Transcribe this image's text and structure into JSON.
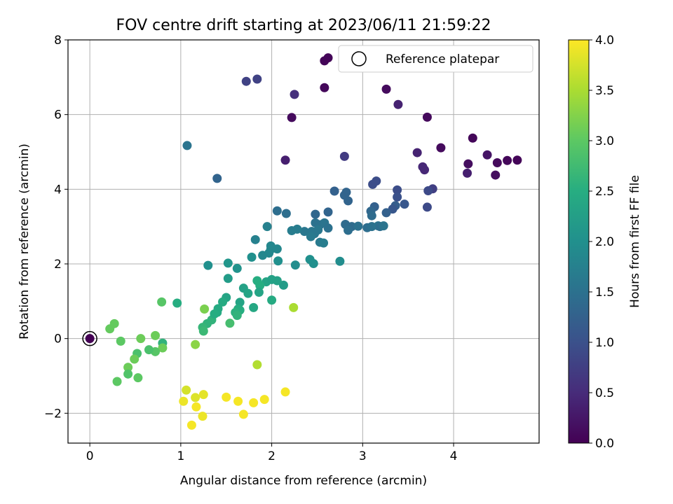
{
  "chart_data": {
    "type": "scatter",
    "title": "FOV centre drift starting at 2023/06/11 21:59:22",
    "xlabel": "Angular distance from reference (arcmin)",
    "ylabel": "Rotation from reference (arcmin)",
    "xlim": [
      -0.24,
      4.94
    ],
    "ylim": [
      -2.8,
      8.0
    ],
    "xticks": [
      0,
      1,
      2,
      3,
      4
    ],
    "yticks": [
      -2,
      0,
      2,
      4,
      6,
      8
    ],
    "xtick_labels": [
      "0",
      "1",
      "2",
      "3",
      "4"
    ],
    "ytick_labels": [
      "−2",
      "0",
      "2",
      "4",
      "6",
      "8"
    ],
    "grid": true,
    "legend": {
      "position": "top-right",
      "entries": [
        "Reference platepar"
      ]
    },
    "reference_point": {
      "x": 0,
      "y": 0
    },
    "colorbar": {
      "label": "Hours from first FF file",
      "range": [
        0.0,
        4.0
      ],
      "ticks": [
        "0.0",
        "0.5",
        "1.0",
        "1.5",
        "2.0",
        "2.5",
        "3.0",
        "3.5",
        "4.0"
      ],
      "colormap": [
        "#440154",
        "#472c7a",
        "#3b518b",
        "#2c718e",
        "#21908d",
        "#27ad81",
        "#5cc863",
        "#aadc32",
        "#fde725"
      ]
    },
    "series": [
      {
        "points": [
          [
            2.62,
            7.52,
            0.05
          ],
          [
            2.58,
            7.44,
            0.05
          ],
          [
            2.58,
            6.72,
            0.08
          ],
          [
            3.26,
            6.68,
            0.12
          ],
          [
            3.71,
            5.93,
            0.1
          ],
          [
            2.22,
            5.92,
            0.12
          ],
          [
            4.21,
            5.37,
            0.07
          ],
          [
            3.86,
            5.11,
            0.12
          ],
          [
            4.7,
            4.78,
            0.05
          ],
          [
            4.59,
            4.77,
            0.07
          ],
          [
            4.48,
            4.71,
            0.1
          ],
          [
            4.37,
            4.92,
            0.22
          ],
          [
            4.16,
            4.68,
            0.15
          ],
          [
            4.46,
            4.38,
            0.15
          ],
          [
            4.15,
            4.43,
            0.35
          ],
          [
            1.84,
            6.95,
            0.8
          ],
          [
            1.72,
            6.89,
            0.8
          ],
          [
            2.25,
            6.54,
            0.55
          ],
          [
            3.39,
            6.27,
            0.38
          ],
          [
            3.6,
            4.98,
            0.4
          ],
          [
            3.66,
            4.6,
            0.45
          ],
          [
            3.68,
            4.52,
            0.45
          ],
          [
            2.15,
            4.78,
            0.35
          ],
          [
            2.8,
            4.88,
            0.7
          ],
          [
            3.15,
            4.22,
            0.95
          ],
          [
            3.11,
            4.13,
            0.95
          ],
          [
            3.77,
            4.01,
            0.75
          ],
          [
            3.72,
            3.96,
            0.9
          ],
          [
            3.38,
            3.98,
            0.95
          ],
          [
            3.38,
            3.79,
            1.0
          ],
          [
            3.46,
            3.6,
            1.1
          ],
          [
            3.36,
            3.56,
            1.2
          ],
          [
            3.71,
            3.52,
            0.9
          ],
          [
            3.33,
            3.47,
            1.1
          ],
          [
            3.26,
            3.37,
            1.25
          ],
          [
            3.13,
            3.53,
            1.25
          ],
          [
            3.09,
            3.41,
            1.35
          ],
          [
            3.1,
            3.29,
            1.4
          ],
          [
            2.82,
            3.92,
            1.3
          ],
          [
            2.69,
            3.95,
            1.25
          ],
          [
            2.8,
            3.84,
            1.3
          ],
          [
            2.84,
            3.69,
            1.3
          ],
          [
            2.62,
            3.39,
            1.3
          ],
          [
            2.48,
            3.33,
            1.35
          ],
          [
            2.81,
            3.06,
            1.4
          ],
          [
            2.88,
            3.0,
            1.4
          ],
          [
            2.95,
            3.01,
            1.5
          ],
          [
            2.84,
            2.9,
            1.45
          ],
          [
            3.05,
            2.97,
            1.45
          ],
          [
            3.1,
            3.0,
            1.5
          ],
          [
            3.17,
            3.02,
            1.55
          ],
          [
            3.19,
            3.0,
            1.45
          ],
          [
            3.23,
            3.02,
            1.55
          ],
          [
            2.48,
            3.1,
            1.5
          ],
          [
            2.53,
            3.05,
            1.5
          ],
          [
            2.58,
            3.1,
            1.55
          ],
          [
            2.62,
            2.96,
            1.5
          ],
          [
            2.51,
            2.91,
            1.6
          ],
          [
            2.44,
            2.87,
            1.6
          ],
          [
            2.47,
            2.81,
            1.6
          ],
          [
            2.36,
            2.87,
            1.6
          ],
          [
            2.28,
            2.93,
            1.7
          ],
          [
            2.22,
            2.89,
            1.7
          ],
          [
            2.43,
            2.73,
            1.65
          ],
          [
            2.53,
            2.58,
            1.65
          ],
          [
            2.57,
            2.56,
            1.7
          ],
          [
            2.16,
            3.35,
            1.45
          ],
          [
            2.06,
            3.42,
            1.45
          ],
          [
            1.95,
            3.0,
            1.75
          ],
          [
            1.82,
            2.65,
            1.75
          ],
          [
            1.99,
            2.48,
            1.85
          ],
          [
            1.99,
            2.39,
            1.85
          ],
          [
            2.06,
            2.4,
            1.85
          ],
          [
            1.97,
            2.29,
            1.85
          ],
          [
            1.9,
            2.23,
            1.85
          ],
          [
            1.78,
            2.18,
            2.0
          ],
          [
            2.07,
            2.08,
            2.0
          ],
          [
            2.26,
            1.97,
            1.95
          ],
          [
            2.42,
            2.12,
            2.0
          ],
          [
            2.46,
            2.01,
            2.0
          ],
          [
            2.75,
            2.07,
            1.95
          ],
          [
            1.3,
            1.96,
            2.0
          ],
          [
            1.52,
            2.02,
            2.1
          ],
          [
            1.62,
            1.88,
            2.05
          ],
          [
            1.52,
            1.61,
            2.2
          ],
          [
            2.13,
            1.43,
            2.2
          ],
          [
            1.94,
            1.52,
            2.35
          ],
          [
            2.0,
            1.58,
            2.3
          ],
          [
            2.06,
            1.55,
            2.3
          ],
          [
            1.84,
            1.55,
            2.5
          ],
          [
            1.87,
            1.42,
            2.5
          ],
          [
            1.86,
            1.24,
            2.35
          ],
          [
            1.69,
            1.35,
            2.3
          ],
          [
            1.74,
            1.21,
            2.35
          ],
          [
            1.8,
            0.83,
            2.4
          ],
          [
            2.0,
            1.03,
            2.45
          ],
          [
            1.65,
            0.97,
            2.35
          ],
          [
            1.5,
            1.1,
            2.35
          ],
          [
            1.46,
            0.98,
            2.45
          ],
          [
            1.41,
            0.8,
            2.45
          ],
          [
            1.4,
            0.7,
            2.45
          ],
          [
            1.63,
            0.79,
            2.5
          ],
          [
            1.65,
            0.76,
            2.5
          ],
          [
            1.6,
            0.7,
            2.55
          ],
          [
            1.62,
            0.62,
            2.6
          ],
          [
            1.34,
            0.5,
            2.6
          ],
          [
            1.29,
            0.4,
            2.6
          ],
          [
            1.24,
            0.3,
            2.65
          ],
          [
            1.25,
            0.2,
            2.7
          ],
          [
            1.37,
            0.66,
            2.5
          ],
          [
            1.54,
            0.41,
            2.8
          ],
          [
            0.96,
            0.95,
            2.5
          ],
          [
            1.07,
            5.17,
            1.55
          ],
          [
            1.4,
            4.29,
            1.3
          ],
          [
            0.79,
            0.98,
            2.95
          ],
          [
            0.8,
            -0.12,
            2.6
          ],
          [
            0.8,
            -0.25,
            3.1
          ],
          [
            0.72,
            -0.35,
            2.95
          ],
          [
            0.65,
            -0.3,
            2.85
          ],
          [
            0.72,
            0.08,
            3.1
          ],
          [
            0.56,
            0.0,
            3.1
          ],
          [
            0.52,
            -0.4,
            2.85
          ],
          [
            0.49,
            -0.55,
            3.1
          ],
          [
            0.53,
            -1.05,
            3.0
          ],
          [
            0.42,
            -0.77,
            3.1
          ],
          [
            0.42,
            -0.95,
            2.9
          ],
          [
            0.3,
            -1.15,
            3.0
          ],
          [
            0.34,
            -0.07,
            3.0
          ],
          [
            0.27,
            0.4,
            3.05
          ],
          [
            0.22,
            0.26,
            3.05
          ],
          [
            1.26,
            0.79,
            3.2
          ],
          [
            1.16,
            -0.16,
            3.3
          ],
          [
            2.24,
            0.83,
            3.5
          ],
          [
            1.84,
            -0.7,
            3.55
          ],
          [
            1.06,
            -1.38,
            3.75
          ],
          [
            1.16,
            -1.58,
            3.8
          ],
          [
            1.25,
            -1.5,
            3.85
          ],
          [
            1.03,
            -1.68,
            3.9
          ],
          [
            1.17,
            -1.83,
            3.95
          ],
          [
            1.24,
            -2.08,
            3.9
          ],
          [
            1.12,
            -2.32,
            3.95
          ],
          [
            1.5,
            -1.57,
            3.95
          ],
          [
            1.63,
            -1.68,
            3.95
          ],
          [
            1.8,
            -1.72,
            3.95
          ],
          [
            1.92,
            -1.63,
            3.95
          ],
          [
            2.15,
            -1.43,
            3.95
          ],
          [
            1.69,
            -2.03,
            3.95
          ],
          [
            0,
            0,
            0.0
          ]
        ]
      }
    ]
  }
}
